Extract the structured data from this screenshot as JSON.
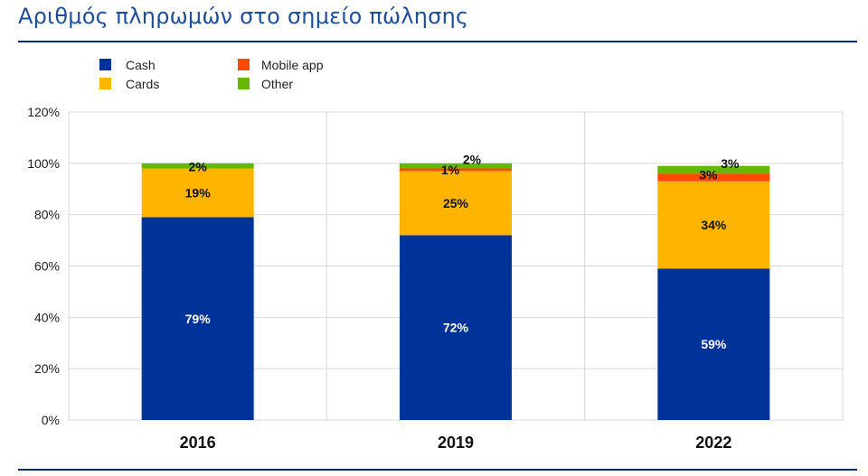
{
  "header": {
    "title": "Αριθμός πληρωμών στο σημείο πώλησης"
  },
  "chart_data": {
    "type": "bar",
    "stacked": true,
    "categories": [
      "2016",
      "2019",
      "2022"
    ],
    "series": [
      {
        "name": "Cash",
        "color": "#003399",
        "values": [
          79,
          72,
          59
        ],
        "labels": [
          "79%",
          "72%",
          "59%"
        ]
      },
      {
        "name": "Cards",
        "color": "#ffb400",
        "values": [
          19,
          25,
          34
        ],
        "labels": [
          "19%",
          "25%",
          "34%"
        ]
      },
      {
        "name": "Mobile app",
        "color": "#ff4b00",
        "values": [
          0,
          1,
          3
        ],
        "labels": [
          "",
          "1%",
          "3%"
        ]
      },
      {
        "name": "Other",
        "color": "#65b800",
        "values": [
          2,
          2,
          3
        ],
        "labels": [
          "2%",
          "2%",
          "3%"
        ]
      }
    ],
    "yticks": [
      "0%",
      "20%",
      "40%",
      "60%",
      "80%",
      "100%",
      "120%"
    ],
    "ylim": [
      0,
      120
    ],
    "grid": true,
    "legend": "top-left"
  }
}
